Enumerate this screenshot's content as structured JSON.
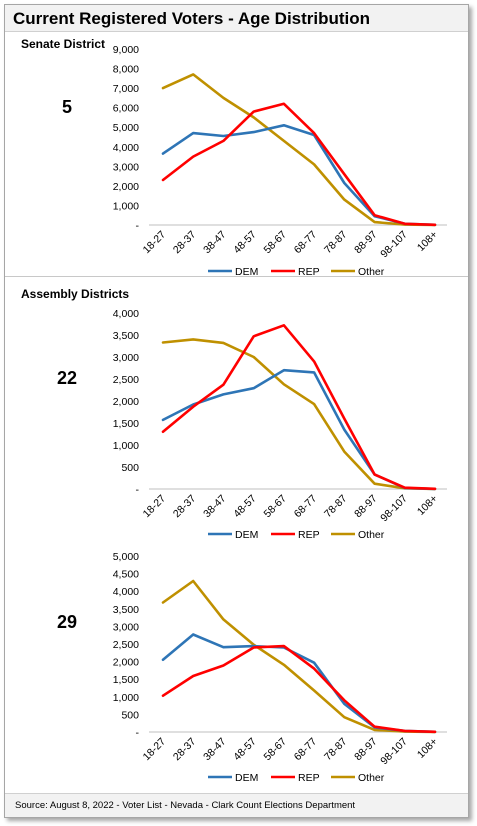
{
  "title": "Current Registered Voters - Age Distribution",
  "footer": "Source: August 8, 2022 - Voter List - Nevada - Clark Count Elections Department",
  "sections": {
    "senate_label": "Senate District",
    "assembly_label": "Assembly Districts"
  },
  "colors": {
    "DEM": "#2e75b6",
    "REP": "#ff0000",
    "Other": "#bf9000"
  },
  "chart_data": [
    {
      "type": "line",
      "district": "5",
      "categories": [
        "18-27",
        "28-37",
        "38-47",
        "48-57",
        "58-67",
        "68-77",
        "78-87",
        "88-97",
        "98-107",
        "108+"
      ],
      "ylim": [
        0,
        9000
      ],
      "yticks": [
        "-",
        "1,000",
        "2,000",
        "3,000",
        "4,000",
        "5,000",
        "6,000",
        "7,000",
        "8,000",
        "9,000"
      ],
      "legend": "bottom",
      "series": [
        {
          "name": "DEM",
          "values": [
            3650,
            4700,
            4550,
            4750,
            5100,
            4600,
            2150,
            450,
            60,
            10
          ]
        },
        {
          "name": "REP",
          "values": [
            2300,
            3500,
            4300,
            5800,
            6200,
            4700,
            2600,
            500,
            60,
            10
          ]
        },
        {
          "name": "Other",
          "values": [
            7000,
            7700,
            6500,
            5500,
            4300,
            3100,
            1300,
            150,
            20,
            5
          ]
        }
      ]
    },
    {
      "type": "line",
      "district": "22",
      "categories": [
        "18-27",
        "28-37",
        "38-47",
        "48-57",
        "58-67",
        "68-77",
        "78-87",
        "88-97",
        "98-107",
        "108+"
      ],
      "ylim": [
        0,
        4000
      ],
      "yticks": [
        "-",
        "500",
        "1,000",
        "1,500",
        "2,000",
        "2,500",
        "3,000",
        "3,500",
        "4,000"
      ],
      "legend": "bottom",
      "series": [
        {
          "name": "DEM",
          "values": [
            1570,
            1920,
            2150,
            2290,
            2700,
            2650,
            1350,
            330,
            20,
            3
          ]
        },
        {
          "name": "REP",
          "values": [
            1300,
            1870,
            2370,
            3470,
            3720,
            2900,
            1600,
            330,
            30,
            5
          ]
        },
        {
          "name": "Other",
          "values": [
            3330,
            3400,
            3320,
            3000,
            2380,
            1930,
            850,
            120,
            15,
            2
          ]
        }
      ]
    },
    {
      "type": "line",
      "district": "29",
      "categories": [
        "18-27",
        "28-37",
        "38-47",
        "48-57",
        "58-67",
        "68-77",
        "78-87",
        "88-97",
        "98-107",
        "108+"
      ],
      "ylim": [
        0,
        5000
      ],
      "yticks": [
        "-",
        "500",
        "1,000",
        "1,500",
        "2,000",
        "2,500",
        "3,000",
        "3,500",
        "4,000",
        "4,500",
        "5,000"
      ],
      "legend": "bottom",
      "series": [
        {
          "name": "DEM",
          "values": [
            2050,
            2770,
            2410,
            2440,
            2400,
            1970,
            800,
            130,
            30,
            5
          ]
        },
        {
          "name": "REP",
          "values": [
            1030,
            1590,
            1890,
            2400,
            2440,
            1800,
            900,
            150,
            30,
            5
          ]
        },
        {
          "name": "Other",
          "values": [
            3680,
            4290,
            3200,
            2480,
            1910,
            1180,
            420,
            60,
            10,
            2
          ]
        }
      ]
    }
  ]
}
